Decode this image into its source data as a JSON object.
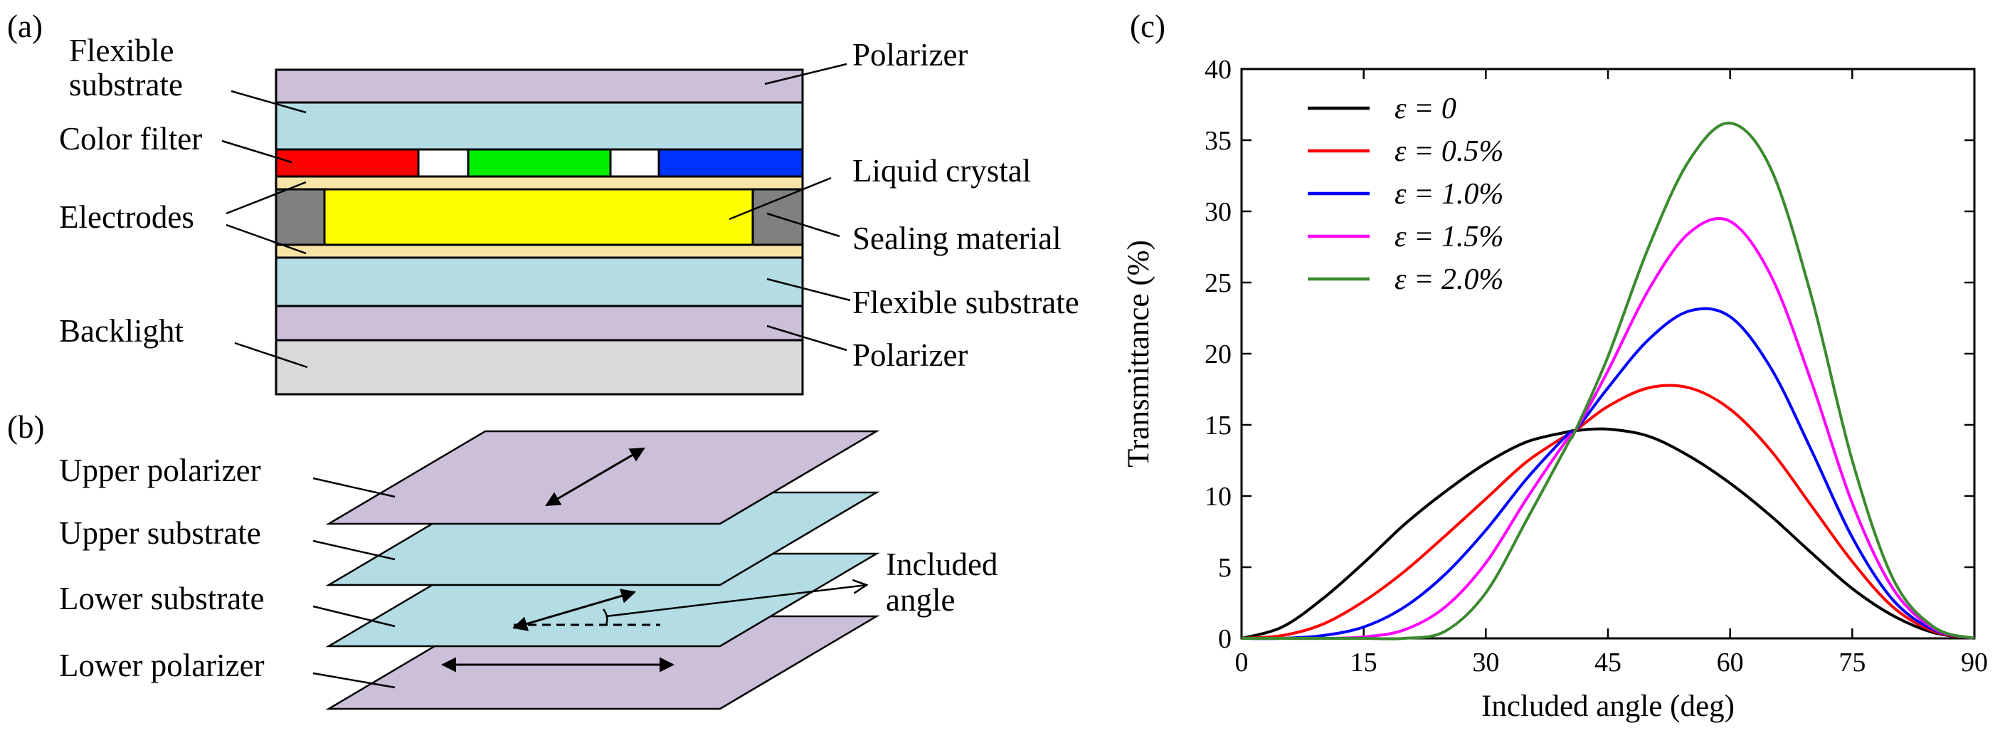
{
  "panel_a": {
    "tag": "(a)",
    "labels": {
      "flexible_substrate_top_line1": "Flexible",
      "flexible_substrate_top_line2": "substrate",
      "color_filter": "Color filter",
      "electrodes": "Electrodes",
      "backlight": "Backlight",
      "polarizer_top": "Polarizer",
      "liquid_crystal": "Liquid crystal",
      "sealing_material": "Sealing material",
      "flexible_substrate_bottom": "Flexible substrate",
      "polarizer_bottom": "Polarizer"
    },
    "colors": {
      "polarizer": "#CBBFD9",
      "substrate": "#B3DCE5",
      "electrode": "#F8E4A6",
      "liquid_crystal": "#FFFF00",
      "sealing": "#808080",
      "backlight": "#D9D9D9",
      "filter_red": "#FF0000",
      "filter_green": "#00EE00",
      "filter_blue": "#0033FF",
      "filter_white": "#FFFFFF"
    }
  },
  "panel_b": {
    "tag": "(b)",
    "labels": {
      "upper_polarizer": "Upper polarizer",
      "upper_substrate": "Upper substrate",
      "lower_substrate": "Lower substrate",
      "lower_polarizer": "Lower polarizer",
      "included_line1": "Included",
      "included_line2": "angle"
    }
  },
  "panel_c": {
    "tag": "(c)"
  },
  "chart_data": {
    "type": "line",
    "title": "",
    "xlabel": "Included angle (deg)",
    "ylabel": "Transmittance (%)",
    "xlim": [
      0,
      90
    ],
    "ylim": [
      0,
      40
    ],
    "xticks": [
      0,
      15,
      30,
      45,
      60,
      75,
      90
    ],
    "yticks": [
      0,
      5,
      10,
      15,
      20,
      25,
      30,
      35,
      40
    ],
    "legend_position": "top-left",
    "x": [
      0,
      5,
      10,
      15,
      20,
      25,
      30,
      35,
      40,
      41,
      45,
      50,
      55,
      60,
      65,
      70,
      75,
      80,
      85,
      90
    ],
    "series": [
      {
        "name": "ε = 0",
        "color": "#000000",
        "values": [
          0,
          0.8,
          2.8,
          5.3,
          8.0,
          10.3,
          12.3,
          13.8,
          14.5,
          14.6,
          14.7,
          14.2,
          12.8,
          10.9,
          8.6,
          6.0,
          3.5,
          1.6,
          0.4,
          0
        ]
      },
      {
        "name": "ε = 0.5%",
        "color": "#FF0000",
        "values": [
          0,
          0.2,
          1.0,
          2.6,
          4.7,
          7.2,
          9.8,
          12.4,
          14.3,
          14.6,
          16.3,
          17.6,
          17.6,
          16.1,
          13.2,
          9.3,
          5.4,
          2.2,
          0.5,
          0
        ]
      },
      {
        "name": "ε = 1.0%",
        "color": "#0000FF",
        "values": [
          0,
          0,
          0.2,
          0.8,
          2.2,
          4.5,
          7.6,
          11.2,
          14.3,
          14.6,
          17.6,
          21.0,
          23.0,
          22.6,
          19.0,
          13.2,
          7.1,
          2.7,
          0.6,
          0
        ]
      },
      {
        "name": "ε = 1.5%",
        "color": "#FF00FF",
        "values": [
          0,
          0,
          0,
          0.1,
          0.6,
          2.2,
          5.3,
          9.8,
          14.0,
          14.6,
          18.8,
          24.5,
          28.5,
          29.3,
          25.5,
          18.0,
          9.5,
          3.5,
          0.7,
          0
        ]
      },
      {
        "name": "ε = 2.0%",
        "color": "#3A8A2E",
        "values": [
          0,
          0,
          0,
          0,
          0,
          0.5,
          3.2,
          8.3,
          13.6,
          14.6,
          19.8,
          27.5,
          33.6,
          36.2,
          33.0,
          24.0,
          12.5,
          4.2,
          0.8,
          0
        ]
      }
    ]
  }
}
